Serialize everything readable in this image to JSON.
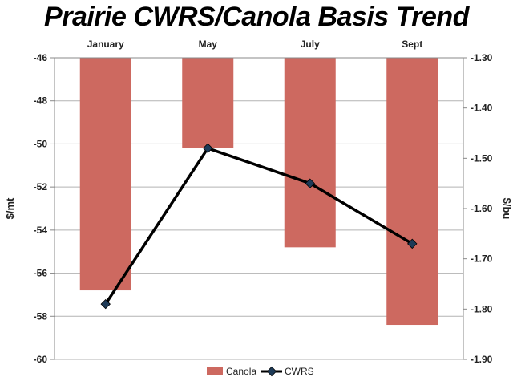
{
  "chart_data": {
    "type": "bar",
    "title": "Prairie CWRS/Canola Basis Trend",
    "categories": [
      "January",
      "May",
      "July",
      "Sept"
    ],
    "y_left": {
      "label": "$/mt",
      "ylim": [
        -60,
        -46
      ],
      "ticks": [
        "-46",
        "-48",
        "-50",
        "-52",
        "-54",
        "-56",
        "-58",
        "-60"
      ],
      "tick_values": [
        -46,
        -48,
        -50,
        -52,
        -54,
        -56,
        -58,
        -60
      ]
    },
    "y_right": {
      "label": "$/bu",
      "ylim": [
        -1.9,
        -1.3
      ],
      "ticks": [
        "-1.30",
        "-1.40",
        "-1.50",
        "-1.60",
        "-1.70",
        "-1.80",
        "-1.90"
      ],
      "tick_values": [
        -1.3,
        -1.4,
        -1.5,
        -1.6,
        -1.7,
        -1.8,
        -1.9
      ]
    },
    "series": [
      {
        "name": "Canola",
        "type": "bar",
        "axis": "left",
        "color": "#cd6960",
        "values": [
          -56.8,
          -50.2,
          -54.8,
          -58.4
        ]
      },
      {
        "name": "CWRS",
        "type": "line",
        "axis": "right",
        "color": "#000000",
        "marker": "diamond",
        "values": [
          -1.79,
          -1.48,
          -1.55,
          -1.67
        ]
      }
    ],
    "grid": true,
    "legend": "bottom"
  }
}
